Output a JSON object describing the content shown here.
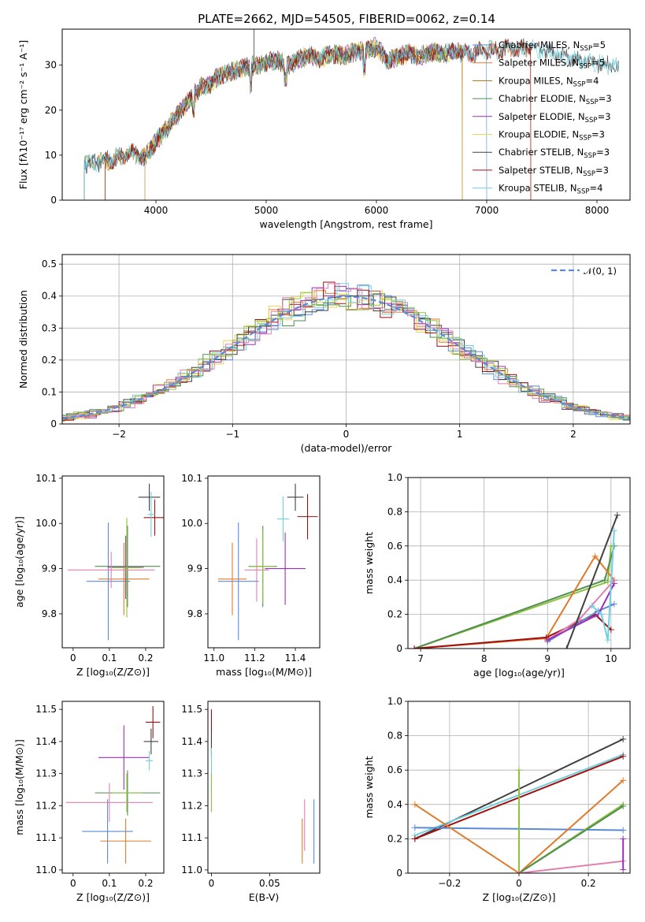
{
  "title": "PLATE=2662, MJD=54505, FIBERID=0062, z=0.14",
  "colors": [
    "#5b8ad8",
    "#e07b28",
    "#a07a00",
    "#4f8f4f",
    "#9b30b5",
    "#e8d84a",
    "#404040",
    "#a01010",
    "#70d0e0",
    "#e080b0",
    "#90c040"
  ],
  "chart_data": [
    {
      "id": "spectrum",
      "type": "line",
      "title": "PLATE=2662, MJD=54505, FIBERID=0062, z=0.14",
      "xlabel": "wavelength [Angstrom, rest frame]",
      "ylabel": "Flux [fλ10⁻¹⁷ erg cm⁻² s⁻¹ A⁻¹]",
      "xlim": [
        3150,
        8300
      ],
      "ylim": [
        0,
        38
      ],
      "xticks": [
        4000,
        5000,
        6000,
        7000,
        8000
      ],
      "yticks": [
        0,
        10,
        20,
        30
      ],
      "grid": false,
      "legend": "top-right",
      "envelope": {
        "x": [
          3350,
          3400,
          3500,
          3600,
          3700,
          3800,
          3900,
          4000,
          4100,
          4200,
          4300,
          4400,
          4500,
          4600,
          4700,
          4800,
          4900,
          5000,
          5100,
          5200,
          5300,
          5400,
          5500,
          5600,
          5700,
          5800,
          5900,
          6000,
          6100,
          6200,
          6300,
          6400,
          6500,
          6600,
          6700,
          6800,
          6900,
          7000,
          7100,
          7200,
          7300,
          7400,
          7500,
          7600,
          7700,
          7800,
          7900,
          8000,
          8100,
          8200,
          8300
        ],
        "y": [
          8.5,
          8.0,
          8.5,
          9.0,
          10.0,
          10.5,
          9.5,
          13.0,
          16.0,
          19.0,
          22.0,
          25.0,
          26.0,
          28.0,
          28.5,
          29.5,
          30.0,
          30.5,
          31.0,
          30.0,
          31.5,
          32.0,
          31.5,
          32.5,
          32.0,
          33.0,
          33.5,
          34.0,
          31.0,
          32.0,
          32.5,
          32.0,
          33.0,
          32.5,
          33.0,
          32.5,
          33.0,
          33.5,
          33.0,
          34.0,
          33.5,
          34.0,
          33.0,
          32.5,
          32.0,
          31.5,
          31.0,
          30.5,
          30.0,
          29.5,
          29.0
        ]
      },
      "series": [
        {
          "name": "Chabrier MILES, N_SSP=5",
          "label": "Chabrier MILES, N",
          "sub": "SSP",
          "tail": "=5",
          "start": 3350,
          "end": 7000
        },
        {
          "name": "Salpeter MILES, N_SSP=5",
          "label": "Salpeter MILES, N",
          "sub": "SSP",
          "tail": "=5",
          "start": 3540,
          "end": 7400
        },
        {
          "name": "Kroupa MILES, N_SSP=4",
          "label": "Kroupa MILES, N",
          "sub": "SSP",
          "tail": "=4",
          "start": 3350,
          "end": 6780
        },
        {
          "name": "Chabrier ELODIE, N_SSP=3",
          "label": "Chabrier ELODIE, N",
          "sub": "SSP",
          "tail": "=3",
          "start": 3900,
          "end": 6780
        },
        {
          "name": "Salpeter ELODIE, N_SSP=3",
          "label": "Salpeter ELODIE, N",
          "sub": "SSP",
          "tail": "=3",
          "start": 3900,
          "end": 6780
        },
        {
          "name": "Kroupa ELODIE, N_SSP=3",
          "label": "Kroupa ELODIE, N",
          "sub": "SSP",
          "tail": "=3",
          "start": 3900,
          "end": 6780
        },
        {
          "name": "Chabrier STELIB, N_SSP=3",
          "label": "Chabrier STELIB, N",
          "sub": "SSP",
          "tail": "=3",
          "start": 3350,
          "end": 8200
        },
        {
          "name": "Salpeter STELIB, N_SSP=3",
          "label": "Salpeter STELIB, N",
          "sub": "SSP",
          "tail": "=3",
          "start": 3540,
          "end": 7400
        },
        {
          "name": "Kroupa STELIB, N_SSP=4",
          "label": "Kroupa STELIB, N",
          "sub": "SSP",
          "tail": "=4",
          "start": 3350,
          "end": 8200
        }
      ]
    },
    {
      "id": "residuals",
      "type": "area",
      "xlabel": "(data-model)/error",
      "ylabel": "Normed distribution",
      "xlim": [
        -2.5,
        2.5
      ],
      "ylim": [
        0,
        0.53
      ],
      "xticks": [
        -2,
        -1,
        0,
        1,
        2
      ],
      "yticks": [
        0.0,
        0.1,
        0.2,
        0.3,
        0.4,
        0.5
      ],
      "grid": true,
      "legend": "top-right",
      "curve_label": "𝒩(0, 1)",
      "bin_width": 0.1
    },
    {
      "id": "age-vs-Z",
      "type": "scatter",
      "xlabel": "Z [log₁₀(Z/Z⊙)]",
      "ylabel": "age  [log₁₀(age/yr)]",
      "xlim": [
        -0.03,
        0.25
      ],
      "ylim": [
        9.725,
        10.105
      ],
      "xticks": [
        0.0,
        0.1,
        0.2
      ],
      "yticks": [
        9.8,
        9.9,
        10.0,
        10.1
      ],
      "points": [
        {
          "x": 0.097,
          "y": 9.872,
          "xerr": 0.06,
          "yerr": 0.13,
          "c": 0
        },
        {
          "x": 0.14,
          "y": 9.877,
          "xerr": 0.07,
          "yerr": 0.08,
          "c": 1
        },
        {
          "x": 0.15,
          "y": 9.905,
          "xerr": 0.09,
          "yerr": 0.09,
          "c": 3
        },
        {
          "x": 0.145,
          "y": 9.903,
          "xerr": 0.05,
          "yerr": 0.07,
          "c": 4
        },
        {
          "x": 0.105,
          "y": 9.897,
          "xerr": 0.12,
          "yerr": 0.04,
          "c": 9
        },
        {
          "x": 0.148,
          "y": 9.902,
          "xerr": 0.04,
          "yerr": 0.11,
          "c": 10
        },
        {
          "x": 0.21,
          "y": 10.058,
          "xerr": 0.03,
          "yerr": 0.03,
          "c": 6
        },
        {
          "x": 0.225,
          "y": 10.013,
          "xerr": 0.03,
          "yerr": 0.04,
          "c": 7
        },
        {
          "x": 0.215,
          "y": 10.02,
          "xerr": 0.01,
          "yerr": 0.05,
          "c": 8
        }
      ]
    },
    {
      "id": "age-vs-mass",
      "type": "scatter",
      "xlabel": "mass [log₁₀(M/M⊙)]",
      "ylabel": "",
      "xlim": [
        10.97,
        11.52
      ],
      "ylim": [
        9.725,
        10.105
      ],
      "xticks": [
        11.0,
        11.2,
        11.4
      ],
      "yticks": [
        9.8,
        9.9,
        10.0,
        10.1
      ],
      "points": [
        {
          "x": 11.12,
          "y": 9.872,
          "xerr": 0.1,
          "yerr": 0.13,
          "c": 0
        },
        {
          "x": 11.09,
          "y": 9.877,
          "xerr": 0.07,
          "yerr": 0.08,
          "c": 1
        },
        {
          "x": 11.24,
          "y": 9.905,
          "xerr": 0.07,
          "yerr": 0.09,
          "c": 3
        },
        {
          "x": 11.35,
          "y": 9.9,
          "xerr": 0.1,
          "yerr": 0.08,
          "c": 4
        },
        {
          "x": 11.21,
          "y": 9.897,
          "xerr": 0.06,
          "yerr": 0.07,
          "c": 9
        },
        {
          "x": 11.24,
          "y": 9.905,
          "xerr": 0.06,
          "yerr": 0.08,
          "c": 10
        },
        {
          "x": 11.4,
          "y": 10.058,
          "xerr": 0.04,
          "yerr": 0.03,
          "c": 6
        },
        {
          "x": 11.46,
          "y": 10.015,
          "xerr": 0.05,
          "yerr": 0.05,
          "c": 7
        },
        {
          "x": 11.34,
          "y": 10.01,
          "xerr": 0.03,
          "yerr": 0.05,
          "c": 8
        }
      ]
    },
    {
      "id": "mass-weight-vs-age",
      "type": "line",
      "xlabel": "age  [log₁₀(age/yr)]",
      "ylabel": "mass weight",
      "xlim": [
        6.8,
        10.3
      ],
      "ylim": [
        0,
        1.0
      ],
      "xticks": [
        7,
        8,
        9,
        10
      ],
      "yticks": [
        0.0,
        0.2,
        0.4,
        0.6,
        0.8,
        1.0
      ],
      "grid": true,
      "lines": [
        {
          "c": 10,
          "x": [
            6.9,
            9.95,
            10.0
          ],
          "y": [
            0.0,
            0.39,
            0.6
          ]
        },
        {
          "c": 3,
          "x": [
            6.9,
            9.9,
            10.05
          ],
          "y": [
            0.0,
            0.4,
            0.6
          ]
        },
        {
          "c": 1,
          "x": [
            6.9,
            8.98,
            9.75,
            10.05
          ],
          "y": [
            0.0,
            0.06,
            0.54,
            0.4
          ]
        },
        {
          "c": 7,
          "x": [
            6.9,
            8.98,
            9.75,
            10.0
          ],
          "y": [
            0.0,
            0.065,
            0.2,
            0.11
          ]
        },
        {
          "c": 0,
          "x": [
            9.0,
            9.8,
            10.05
          ],
          "y": [
            0.04,
            0.22,
            0.26
          ]
        },
        {
          "c": 9,
          "x": [
            9.0,
            9.5,
            10.05
          ],
          "y": [
            0.05,
            0.17,
            0.4
          ]
        },
        {
          "c": 4,
          "x": [
            9.0,
            9.8,
            10.05
          ],
          "y": [
            0.05,
            0.2,
            0.38
          ]
        },
        {
          "c": 8,
          "x": [
            9.7,
            9.85,
            9.95,
            10.05
          ],
          "y": [
            0.25,
            0.2,
            0.05,
            0.69
          ]
        },
        {
          "c": 6,
          "x": [
            9.3,
            10.1
          ],
          "y": [
            0.0,
            0.78
          ]
        }
      ]
    },
    {
      "id": "mass-vs-Z",
      "type": "scatter",
      "xlabel": "Z [log₁₀(Z/Z⊙)]",
      "ylabel": "mass [log₁₀(M/M⊙)]",
      "xlim": [
        -0.03,
        0.25
      ],
      "ylim": [
        10.99,
        11.525
      ],
      "xticks": [
        0.0,
        0.1,
        0.2
      ],
      "yticks": [
        11.0,
        11.1,
        11.2,
        11.3,
        11.4,
        11.5
      ],
      "points": [
        {
          "x": 0.095,
          "y": 11.12,
          "xerr": 0.07,
          "yerr": 0.1,
          "c": 0
        },
        {
          "x": 0.145,
          "y": 11.09,
          "xerr": 0.07,
          "yerr": 0.07,
          "c": 1
        },
        {
          "x": 0.15,
          "y": 11.24,
          "xerr": 0.09,
          "yerr": 0.07,
          "c": 3
        },
        {
          "x": 0.14,
          "y": 11.35,
          "xerr": 0.07,
          "yerr": 0.1,
          "c": 4
        },
        {
          "x": 0.1,
          "y": 11.21,
          "xerr": 0.12,
          "yerr": 0.06,
          "c": 9
        },
        {
          "x": 0.148,
          "y": 11.24,
          "xerr": 0.04,
          "yerr": 0.06,
          "c": 10
        },
        {
          "x": 0.215,
          "y": 11.4,
          "xerr": 0.02,
          "yerr": 0.04,
          "c": 6
        },
        {
          "x": 0.22,
          "y": 11.46,
          "xerr": 0.02,
          "yerr": 0.05,
          "c": 7
        },
        {
          "x": 0.21,
          "y": 11.34,
          "xerr": 0.01,
          "yerr": 0.03,
          "c": 8
        }
      ]
    },
    {
      "id": "mass-vs-ebv",
      "type": "scatter",
      "xlabel": "E(B-V)",
      "ylabel": "",
      "xlim": [
        -0.003,
        0.093
      ],
      "ylim": [
        10.99,
        11.525
      ],
      "xticks": [
        0.0,
        0.05
      ],
      "yticks": [
        11.0,
        11.1,
        11.2,
        11.3,
        11.4,
        11.5
      ],
      "points": [
        {
          "x": 0.0,
          "y": 11.46,
          "xerr": 0.0,
          "yerr": 0.04,
          "c": 7
        },
        {
          "x": 0.0,
          "y": 11.39,
          "xerr": 0.0,
          "yerr": 0.03,
          "c": 6
        },
        {
          "x": 0.0,
          "y": 11.3,
          "xerr": 0.0,
          "yerr": 0.08,
          "c": 8
        },
        {
          "x": 0.0,
          "y": 11.24,
          "xerr": 0.0,
          "yerr": 0.06,
          "c": 10
        },
        {
          "x": 0.088,
          "y": 11.12,
          "xerr": 0.0,
          "yerr": 0.1,
          "c": 0
        },
        {
          "x": 0.08,
          "y": 11.14,
          "xerr": 0.0,
          "yerr": 0.08,
          "c": 9
        },
        {
          "x": 0.078,
          "y": 11.09,
          "xerr": 0.0,
          "yerr": 0.07,
          "c": 1
        }
      ]
    },
    {
      "id": "mass-weight-vs-Z",
      "type": "line",
      "xlabel": "Z [log₁₀(Z/Z⊙)]",
      "ylabel": "mass weight",
      "xlim": [
        -0.32,
        0.32
      ],
      "ylim": [
        0,
        1.0
      ],
      "xticks": [
        -0.2,
        0.0,
        0.2
      ],
      "yticks": [
        0.0,
        0.2,
        0.4,
        0.6,
        0.8,
        1.0
      ],
      "grid": true,
      "lines": [
        {
          "c": 6,
          "x": [
            -0.3,
            0.3
          ],
          "y": [
            0.2,
            0.78
          ]
        },
        {
          "c": 8,
          "x": [
            -0.3,
            0.3
          ],
          "y": [
            0.22,
            0.69
          ]
        },
        {
          "c": 7,
          "x": [
            -0.3,
            0.3
          ],
          "y": [
            0.2,
            0.68
          ]
        },
        {
          "c": 0,
          "x": [
            -0.3,
            0.3
          ],
          "y": [
            0.265,
            0.25
          ]
        },
        {
          "c": 1,
          "x": [
            -0.3,
            0.0,
            0.3
          ],
          "y": [
            0.4,
            0.0,
            0.54
          ]
        },
        {
          "c": 10,
          "x": [
            0.0,
            0.0,
            0.3
          ],
          "y": [
            0.6,
            0.0,
            0.4
          ]
        },
        {
          "c": 3,
          "x": [
            0.0,
            0.3
          ],
          "y": [
            0.0,
            0.39
          ]
        },
        {
          "c": 9,
          "x": [
            0.0,
            0.3
          ],
          "y": [
            0.0,
            0.07
          ]
        },
        {
          "c": 4,
          "x": [
            0.3,
            0.3
          ],
          "y": [
            0.02,
            0.2
          ]
        }
      ]
    }
  ]
}
